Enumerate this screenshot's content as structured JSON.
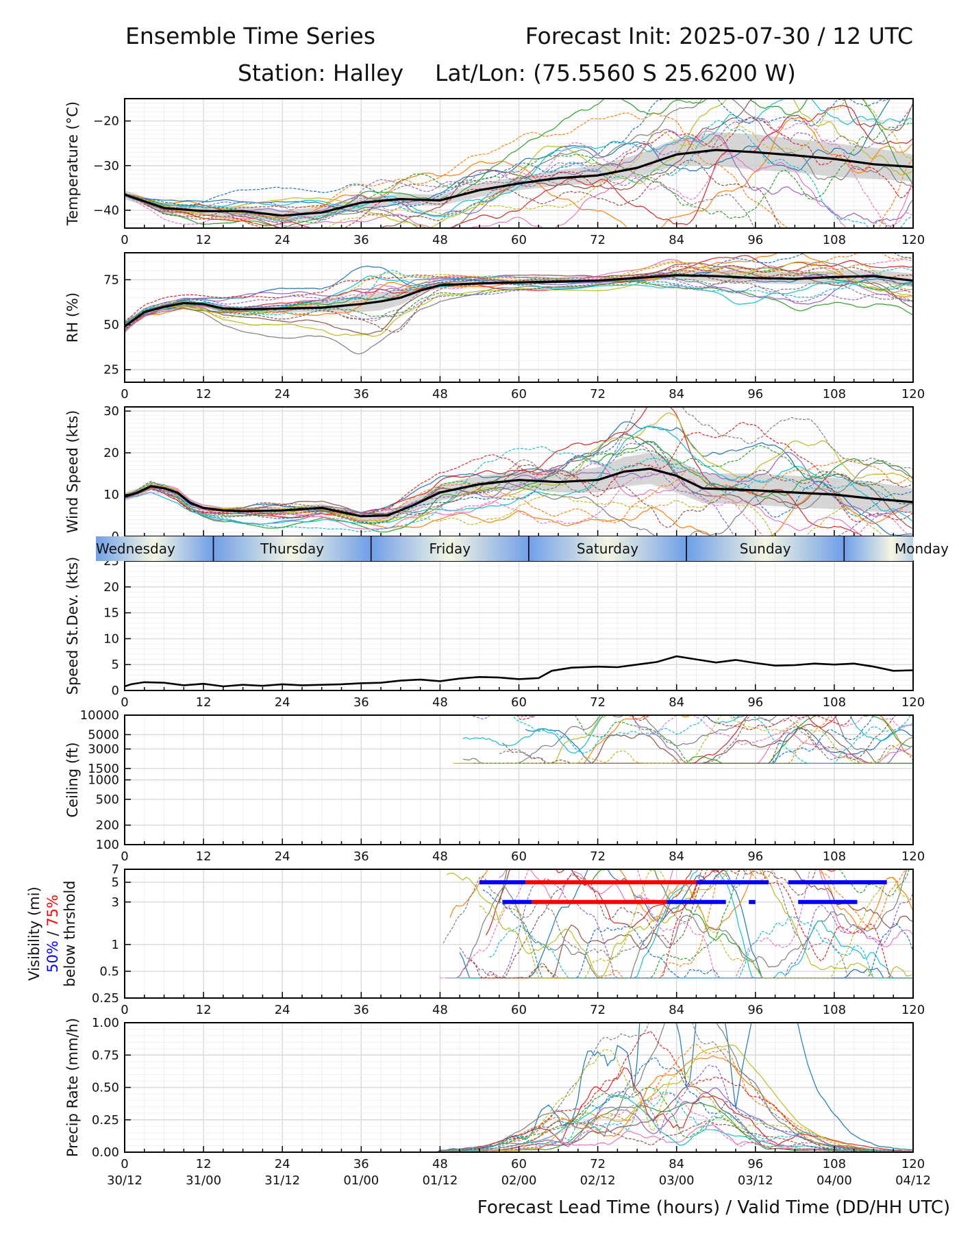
{
  "header": {
    "title_left": "Ensemble Time Series",
    "title_right": "Forecast Init: 2025-07-30 / 12 UTC",
    "station": "Station: Halley",
    "latlon": "Lat/Lon: (75.5560 S 25.6200 W)"
  },
  "x_axis": {
    "label": "Forecast Lead Time (hours) / Valid Time (DD/HH UTC)",
    "lead_ticks": [
      "0",
      "12",
      "24",
      "36",
      "48",
      "60",
      "72",
      "84",
      "96",
      "108",
      "120"
    ],
    "valid_ticks": [
      "30/12",
      "31/00",
      "31/12",
      "01/00",
      "01/12",
      "02/00",
      "02/12",
      "03/00",
      "03/12",
      "04/00",
      "04/12"
    ],
    "range": [
      0,
      120
    ]
  },
  "day_band": {
    "days": [
      {
        "label": "Wednesday",
        "start": -4.5,
        "end": 13.5
      },
      {
        "label": "Thursday",
        "start": 13.5,
        "end": 37.5
      },
      {
        "label": "Friday",
        "start": 37.5,
        "end": 61.5
      },
      {
        "label": "Saturday",
        "start": 61.5,
        "end": 85.5
      },
      {
        "label": "Sunday",
        "start": 85.5,
        "end": 109.5
      },
      {
        "label": "Monday",
        "start": 109.5,
        "end": 124
      }
    ]
  },
  "colors": {
    "members": [
      "#1f77b4",
      "#ff7f0e",
      "#2ca02c",
      "#d62728",
      "#9467bd",
      "#8c564b",
      "#e377c2",
      "#7f7f7f",
      "#bcbd22",
      "#17becf"
    ],
    "mean": "#000000",
    "spread": "#c8c8c8",
    "vis_50": "#0000ff",
    "vis_75": "#ff0000",
    "grid": "#dddddd"
  },
  "chart_data": [
    {
      "type": "line",
      "id": "temperature",
      "ylabel": "Temperature (°C)",
      "ylim": [
        -44,
        -15
      ],
      "yticks": [
        -40,
        -30,
        -20
      ],
      "ytick_labels": [
        "−40",
        "−30",
        "−20"
      ],
      "x": [
        0,
        6,
        12,
        18,
        24,
        30,
        36,
        42,
        48,
        54,
        60,
        66,
        72,
        78,
        84,
        90,
        96,
        102,
        108,
        114,
        120
      ],
      "mean": [
        -36.5,
        -39.5,
        -40.2,
        -40.2,
        -41.2,
        -40.5,
        -38.3,
        -37.5,
        -37.8,
        -35.5,
        -34.0,
        -32.8,
        -32.2,
        -30.5,
        -27.5,
        -26.5,
        -27.0,
        -27.7,
        -28.5,
        -29.7,
        -30.3
      ],
      "spread_low": [
        -37.5,
        -40.5,
        -41.0,
        -41.5,
        -42.5,
        -41.8,
        -39.5,
        -38.8,
        -39.0,
        -37.0,
        -35.5,
        -34.5,
        -34.0,
        -32.5,
        -30.0,
        -30.0,
        -31.0,
        -31.5,
        -32.5,
        -33.0,
        -33.5
      ],
      "spread_high": [
        -35.5,
        -38.5,
        -39.3,
        -39.0,
        -40.0,
        -39.3,
        -37.3,
        -36.3,
        -36.5,
        -34.0,
        -32.5,
        -31.0,
        -30.0,
        -27.5,
        -24.0,
        -22.5,
        -23.0,
        -24.0,
        -25.0,
        -26.0,
        -27.5
      ],
      "member_spread": [
        0.6,
        0.8,
        0.9,
        1.1,
        1.3,
        1.5,
        1.6,
        1.8,
        2.0,
        2.3,
        2.6,
        2.9,
        3.3,
        3.8,
        4.3,
        4.8,
        5.2,
        5.5,
        5.8,
        6.0,
        6.2
      ],
      "members": 20
    },
    {
      "type": "line",
      "id": "rh",
      "ylabel": "RH (%)",
      "ylim": [
        18,
        90
      ],
      "yticks": [
        25,
        50,
        75
      ],
      "ytick_labels": [
        "25",
        "50",
        "75"
      ],
      "x": [
        0,
        3,
        6,
        9,
        12,
        15,
        18,
        24,
        30,
        36,
        39,
        42,
        45,
        48,
        54,
        60,
        66,
        72,
        78,
        84,
        90,
        96,
        102,
        108,
        114,
        120
      ],
      "mean": [
        49,
        57,
        60,
        62,
        61.5,
        59,
        58.5,
        59,
        59.5,
        61.5,
        63,
        65,
        69,
        72,
        73,
        73.5,
        74,
        74.5,
        76,
        77.5,
        77,
        76,
        75.5,
        76.5,
        77,
        74.5
      ],
      "spread_low": [
        45,
        55,
        58.5,
        61,
        60.5,
        57.5,
        57,
        57,
        57,
        57,
        58,
        61,
        67,
        70.5,
        72,
        72.5,
        73,
        73.5,
        74.5,
        75,
        74,
        73,
        72.5,
        73,
        73.5,
        71
      ],
      "spread_high": [
        53,
        59,
        61.5,
        63,
        62.5,
        60.5,
        60,
        61,
        62.5,
        66,
        68,
        70,
        72,
        73.5,
        74.5,
        74.5,
        75,
        75.5,
        78,
        80,
        80.5,
        80,
        79,
        80,
        80.5,
        78.5
      ],
      "member_spread": [
        5,
        3,
        2,
        1.5,
        1.5,
        2,
        2,
        2.5,
        3,
        5,
        6,
        5,
        3,
        2,
        1.5,
        1.2,
        1.2,
        1.2,
        1.8,
        2.8,
        3.5,
        3.8,
        4,
        4,
        4.2,
        4.5
      ],
      "members": 20
    },
    {
      "type": "line",
      "id": "wind_speed",
      "ylabel": "Wind Speed (kts)",
      "ylim": [
        0,
        31
      ],
      "yticks": [
        0,
        10,
        20,
        30
      ],
      "ytick_labels": [
        "0",
        "10",
        "20",
        "30"
      ],
      "x": [
        0,
        2,
        4,
        6,
        8,
        10,
        12,
        15,
        18,
        24,
        30,
        36,
        40,
        44,
        48,
        54,
        60,
        66,
        72,
        76,
        80,
        84,
        88,
        96,
        102,
        108,
        114,
        120
      ],
      "mean": [
        9.5,
        10.5,
        12,
        11.5,
        10.5,
        8,
        6.8,
        6.2,
        6,
        6.2,
        6.8,
        4.8,
        5,
        7.5,
        10.5,
        12.5,
        13.5,
        13,
        13.5,
        15.5,
        16.2,
        14.5,
        11.5,
        11,
        10.5,
        10,
        9,
        8.2
      ],
      "spread_low": [
        8.5,
        9.5,
        11,
        10.5,
        9.5,
        7,
        6,
        5.5,
        5.2,
        5.4,
        5.8,
        4,
        4,
        6,
        8.5,
        10.5,
        11.5,
        10.5,
        10.5,
        12,
        12.5,
        10.5,
        8,
        7.5,
        7,
        6.5,
        6,
        5.5
      ],
      "spread_high": [
        10.5,
        11.5,
        13,
        12.5,
        11.5,
        9,
        7.6,
        7,
        6.8,
        7,
        7.8,
        5.6,
        6,
        9,
        12.5,
        14.5,
        15.5,
        15.5,
        16.5,
        19,
        20,
        18.5,
        15,
        15,
        14.5,
        14,
        13,
        11.5
      ],
      "member_spread": [
        0.8,
        0.9,
        1,
        1,
        1,
        0.9,
        0.8,
        0.8,
        0.8,
        0.8,
        0.9,
        0.8,
        1,
        1.5,
        2,
        2.3,
        2.5,
        3,
        3.5,
        4,
        4.5,
        4.5,
        4,
        4,
        4,
        3.8,
        3.5,
        3
      ],
      "members": 20
    },
    {
      "type": "line",
      "id": "speed_stdev",
      "ylabel": "Speed St.Dev. (kts)",
      "ylim": [
        0,
        25
      ],
      "yticks": [
        0,
        5,
        10,
        15,
        20,
        25
      ],
      "ytick_labels": [
        "0",
        "5",
        "10",
        "15",
        "20",
        "25"
      ],
      "x": [
        0,
        1,
        3,
        6,
        9,
        12,
        15,
        18,
        21,
        24,
        27,
        30,
        33,
        36,
        39,
        42,
        45,
        48,
        51,
        54,
        57,
        60,
        63,
        65,
        68,
        72,
        75,
        78,
        81,
        84,
        87,
        90,
        93,
        96,
        99,
        102,
        105,
        108,
        111,
        114,
        117,
        120
      ],
      "values": [
        0.8,
        1.2,
        1.6,
        1.5,
        1.0,
        1.3,
        0.8,
        1.1,
        0.9,
        1.2,
        1.0,
        1.1,
        1.2,
        1.4,
        1.5,
        1.9,
        2.1,
        1.8,
        2.3,
        2.6,
        2.5,
        2.2,
        2.4,
        3.8,
        4.4,
        4.6,
        4.5,
        5.0,
        5.5,
        6.6,
        6.0,
        5.4,
        5.9,
        5.3,
        4.8,
        4.9,
        5.2,
        5.0,
        5.2,
        4.6,
        3.8,
        3.9
      ]
    },
    {
      "type": "line",
      "id": "ceiling",
      "ylabel": "Ceiling (ft)",
      "yscale": "log",
      "ylim": [
        100,
        10000
      ],
      "yticks": [
        100,
        200,
        500,
        1000,
        1500,
        3000,
        5000,
        10000
      ],
      "ytick_labels": [
        "100",
        "200",
        "500",
        "1000",
        "1500",
        "3000",
        "5000",
        "10000"
      ],
      "active_range": [
        48,
        120
      ],
      "typical_range_ft": [
        2000,
        10000
      ],
      "members": 20
    },
    {
      "type": "line",
      "id": "visibility",
      "ylabel": "Visibility (mi)",
      "ylabel_50": "50%",
      "ylabel_slash": " / ",
      "ylabel_75": "75%",
      "ylabel_suffix": "below thrshold",
      "yscale": "log",
      "ylim": [
        0.25,
        7
      ],
      "yticks": [
        0.25,
        0.5,
        1,
        3,
        5,
        7
      ],
      "ytick_labels": [
        "0.25",
        "0.5",
        "1",
        "3",
        "5",
        "7"
      ],
      "members": 20,
      "threshold_bars": [
        {
          "level": 5,
          "color": "blue",
          "start": 54,
          "end": 61
        },
        {
          "level": 5,
          "color": "red",
          "start": 61,
          "end": 87
        },
        {
          "level": 5,
          "color": "blue",
          "start": 87,
          "end": 98
        },
        {
          "level": 5,
          "color": "blue",
          "start": 101,
          "end": 116
        },
        {
          "level": 3,
          "color": "blue",
          "start": 57.5,
          "end": 62
        },
        {
          "level": 3,
          "color": "red",
          "start": 62,
          "end": 82.5
        },
        {
          "level": 3,
          "color": "blue",
          "start": 82.5,
          "end": 91.5
        },
        {
          "level": 3,
          "color": "blue",
          "start": 95,
          "end": 96
        },
        {
          "level": 3,
          "color": "blue",
          "start": 102.5,
          "end": 111.5
        }
      ]
    },
    {
      "type": "line",
      "id": "precip",
      "ylabel": "Precip Rate (mm/h)",
      "ylim": [
        0,
        1.0
      ],
      "yticks": [
        0.0,
        0.25,
        0.5,
        0.75,
        1.0
      ],
      "ytick_labels": [
        "0.00",
        "0.25",
        "0.50",
        "0.75",
        "1.00"
      ],
      "peak_at_hour": 82,
      "peak_value": 0.89,
      "members": 20
    }
  ]
}
